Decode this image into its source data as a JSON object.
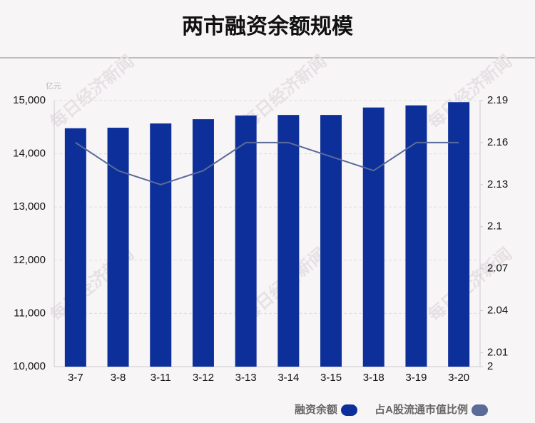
{
  "chart_data": {
    "type": "bar",
    "title": "两市融资余额规模",
    "y_unit_label": "亿元",
    "watermark": "每日经济新闻",
    "categories": [
      "3-7",
      "3-8",
      "3-11",
      "3-12",
      "3-13",
      "3-14",
      "3-15",
      "3-18",
      "3-19",
      "3-20"
    ],
    "series": [
      {
        "name": "融资余额",
        "type": "bar",
        "color": "#0d2f9a",
        "values": [
          14480,
          14490,
          14570,
          14650,
          14720,
          14730,
          14730,
          14870,
          14910,
          14970
        ]
      },
      {
        "name": "占A股流通市值比例",
        "type": "line",
        "axis": "y2",
        "color": "#5a6b99",
        "values": [
          2.16,
          2.14,
          2.13,
          2.14,
          2.16,
          2.16,
          2.15,
          2.14,
          2.16,
          2.16
        ]
      }
    ],
    "ylim": [
      10000,
      15000
    ],
    "yticks": [
      {
        "value": 10000,
        "label": "10,000"
      },
      {
        "value": 11000,
        "label": "11,000"
      },
      {
        "value": 12000,
        "label": "12,000"
      },
      {
        "value": 13000,
        "label": "13,000"
      },
      {
        "value": 14000,
        "label": "14,000"
      },
      {
        "value": 15000,
        "label": "15,000"
      }
    ],
    "y2lim": [
      2,
      2.19
    ],
    "y2ticks": [
      2,
      2.01,
      2.04,
      2.07,
      2.1,
      2.13,
      2.16,
      2.19
    ],
    "grid": true,
    "legend": "bottom-right"
  }
}
